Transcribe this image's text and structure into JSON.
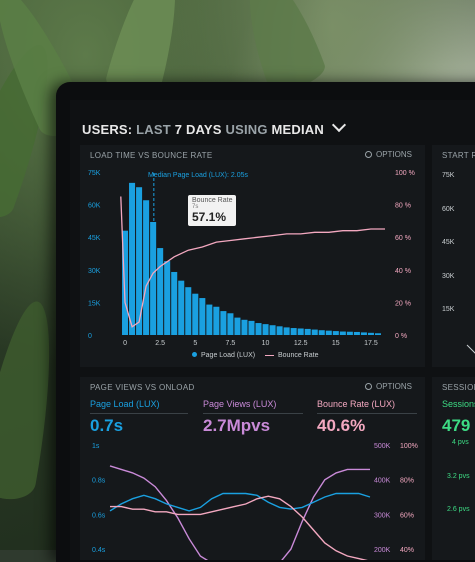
{
  "header": {
    "prefix": "USERS:",
    "range": "LAST",
    "range_bold": "7 DAYS",
    "using": "USING",
    "stat": "MEDIAN"
  },
  "panel_top": {
    "title": "LOAD TIME VS BOUNCE RATE",
    "options_label": "OPTIONS",
    "median_label": "Median Page Load (LUX): 2.05s",
    "tooltip": {
      "label": "Bounce Rate",
      "sub": "7s",
      "value": "57.1%"
    },
    "legend": [
      {
        "name": "Page Load (LUX)",
        "color": "#1aa0e0"
      },
      {
        "name": "Bounce Rate",
        "color": "#f3a8c0"
      }
    ]
  },
  "panel_right_top": {
    "title": "START R"
  },
  "chart_data": [
    {
      "type": "bar",
      "title": "LOAD TIME VS BOUNCE RATE",
      "x_ticks": [
        "0",
        "2.5",
        "5",
        "7.5",
        "10",
        "12.5",
        "15",
        "17.5"
      ],
      "y_left_ticks": [
        "0",
        "15K",
        "30K",
        "45K",
        "60K",
        "75K"
      ],
      "y_right_ticks": [
        "0 %",
        "20 %",
        "40 %",
        "60 %",
        "80 %",
        "100 %"
      ],
      "ylim_left": [
        0,
        75000
      ],
      "ylim_right": [
        0,
        100
      ],
      "series": [
        {
          "name": "Page Load (LUX)",
          "type": "bar",
          "color": "#1aa0e0",
          "x": [
            0.5,
            1,
            1.5,
            2,
            2.5,
            3,
            3.5,
            4,
            4.5,
            5,
            5.5,
            6,
            6.5,
            7,
            7.5,
            8,
            8.5,
            9,
            9.5,
            10,
            10.5,
            11,
            11.5,
            12,
            12.5,
            13,
            13.5,
            14,
            14.5,
            15,
            15.5,
            16,
            16.5,
            17,
            17.5,
            18,
            18.5
          ],
          "values": [
            48000,
            70000,
            68000,
            62000,
            52000,
            40000,
            34000,
            29000,
            25000,
            22000,
            19000,
            17000,
            14000,
            13000,
            11000,
            10000,
            8000,
            7000,
            6500,
            5500,
            5000,
            4500,
            4000,
            3500,
            3200,
            3000,
            2800,
            2500,
            2200,
            2000,
            1800,
            1600,
            1500,
            1400,
            1200,
            1000,
            800
          ]
        },
        {
          "name": "Bounce Rate",
          "type": "line",
          "color": "#f3a8c0",
          "x": [
            0.2,
            0.5,
            1,
            1.5,
            2,
            2.5,
            3,
            4,
            5,
            6,
            7,
            8,
            9,
            10,
            11,
            12,
            13,
            14,
            15,
            16,
            17,
            18,
            19
          ],
          "values": [
            85,
            20,
            5,
            8,
            30,
            38,
            42,
            48,
            52,
            54,
            57,
            58,
            59,
            60,
            61,
            62,
            62,
            63,
            63,
            64,
            64,
            65,
            65
          ]
        }
      ]
    },
    {
      "type": "line",
      "title": "PAGE VIEWS VS ONLOAD",
      "y_left_ticks": [
        "0.6s",
        "0.8s",
        "1s"
      ],
      "y_right_ticks": [
        "200K 40%",
        "300K 60%",
        "400K 80%",
        "500K 100%"
      ],
      "series": [
        {
          "name": "Page Load (LUX)",
          "color": "#1aa0e0",
          "values": [
            0.62,
            0.66,
            0.69,
            0.71,
            0.69,
            0.66,
            0.64,
            0.62,
            0.64,
            0.69,
            0.72,
            0.72,
            0.72,
            0.71,
            0.67,
            0.64,
            0.63,
            0.64,
            0.67,
            0.7,
            0.72,
            0.72,
            0.72,
            0.7
          ]
        },
        {
          "name": "Page Views (LUX)",
          "color": "#c98ad8",
          "values": [
            480,
            470,
            460,
            445,
            420,
            380,
            330,
            270,
            220,
            200,
            190,
            190,
            190,
            190,
            190,
            200,
            240,
            320,
            390,
            440,
            460,
            470,
            470,
            470
          ]
        },
        {
          "name": "Bounce Rate (LUX)",
          "color": "#f3a8c0",
          "values": [
            34,
            34,
            33,
            33,
            32,
            32,
            31,
            31,
            31,
            32,
            33,
            34,
            35,
            37,
            38,
            37,
            34,
            30,
            25,
            20,
            17,
            15,
            14,
            13
          ]
        }
      ]
    }
  ],
  "panel_bottom": {
    "title": "PAGE VIEWS VS ONLOAD",
    "options_label": "OPTIONS",
    "metrics": [
      {
        "label": "Page Load (LUX)",
        "value": "0.7s",
        "color": "#1aa0e0"
      },
      {
        "label": "Page Views (LUX)",
        "value": "2.7Mpvs",
        "color": "#c98ad8"
      },
      {
        "label": "Bounce Rate (LUX)",
        "value": "40.6%",
        "color": "#f3a8c0"
      }
    ],
    "left_ticks": [
      "1s",
      "0.8s",
      "0.6s",
      "0.4s"
    ],
    "right_ticks_k": [
      "500K",
      "400K",
      "300K",
      "200K"
    ],
    "right_ticks_pct": [
      "100%",
      "80%",
      "60%",
      "40%"
    ]
  },
  "panel_right_bottom": {
    "title": "SESSION",
    "sub": "Sessions",
    "value": "479",
    "items": [
      "4 pvs",
      "3.2 pvs",
      "2.6 pvs"
    ]
  }
}
